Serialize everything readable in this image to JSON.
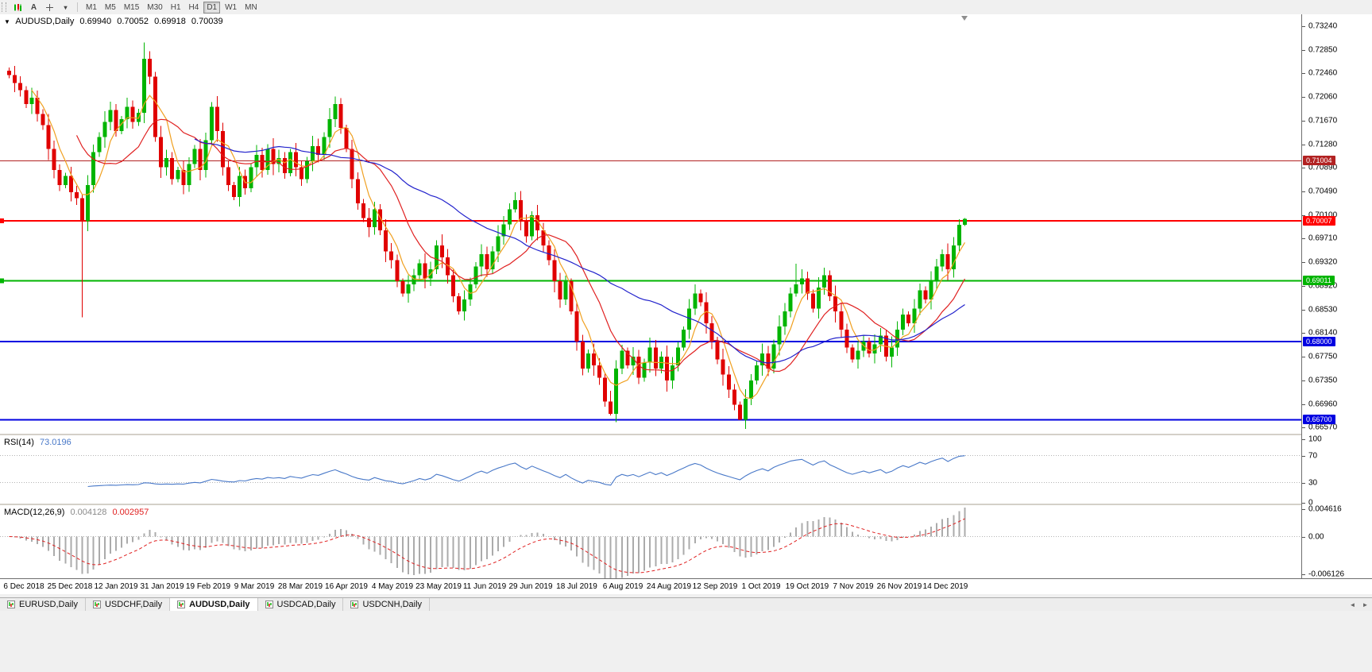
{
  "toolbar": {
    "icons": [
      {
        "name": "candlestick-chart-icon"
      },
      {
        "name": "text-annotation-icon",
        "glyph": "A"
      },
      {
        "name": "crosshair-icon"
      },
      {
        "name": "draw-tools-dropdown-icon",
        "glyph": "▾"
      }
    ],
    "timeframes": [
      "M1",
      "M5",
      "M15",
      "M30",
      "H1",
      "H4",
      "D1",
      "W1",
      "MN"
    ],
    "active_timeframe": "D1"
  },
  "chart": {
    "symbol_header": {
      "dropdown_icon": "▼",
      "symbol": "AUDUSD,Daily",
      "open": "0.69940",
      "high": "0.70052",
      "low": "0.69918",
      "close": "0.70039"
    },
    "colors": {
      "up": "#00B400",
      "down": "#E00000",
      "background": "#FFFFFF"
    },
    "ylim_top": 0.7344,
    "ylim_bottom": 0.6648,
    "price_ticks": [
      "0.73240",
      "0.72850",
      "0.72460",
      "0.72060",
      "0.71670",
      "0.71280",
      "0.70890",
      "0.70490",
      "0.70100",
      "0.69710",
      "0.69320",
      "0.68920",
      "0.68530",
      "0.68140",
      "0.67750",
      "0.67350",
      "0.66960",
      "0.66570"
    ],
    "hlines": [
      {
        "price": 0.71004,
        "label": "0.71004",
        "color": "#B22222",
        "width": 1.4,
        "left_tag": false
      },
      {
        "price": 0.70007,
        "label": "0.70007",
        "color": "#FF0000",
        "width": 2,
        "left_tag": true
      },
      {
        "price": 0.69011,
        "label": "0.69011",
        "color": "#00B400",
        "width": 2,
        "left_tag": true
      },
      {
        "price": 0.68,
        "label": "0.68000",
        "color": "#0000E1",
        "width": 2,
        "left_tag": false
      },
      {
        "price": 0.667,
        "label": "0.66700",
        "color": "#0000E1",
        "width": 2,
        "left_tag": false
      }
    ],
    "moving_averages": [
      {
        "name": "fast-ma",
        "period": 5,
        "color": "#F0A020"
      },
      {
        "name": "medium-ma",
        "period": 13,
        "color": "#E02020"
      },
      {
        "name": "slow-ma",
        "period": 34,
        "color": "#2222CC"
      }
    ],
    "dates": [
      "6 Dec 2018",
      "25 Dec 2018",
      "12 Jan 2019",
      "31 Jan 2019",
      "19 Feb 2019",
      "9 Mar 2019",
      "28 Mar 2019",
      "16 Apr 2019",
      "4 May 2019",
      "23 May 2019",
      "11 Jun 2019",
      "29 Jun 2019",
      "18 Jul 2019",
      "6 Aug 2019",
      "24 Aug 2019",
      "12 Sep 2019",
      "1 Oct 2019",
      "19 Oct 2019",
      "7 Nov 2019",
      "26 Nov 2019",
      "14 Dec 2019"
    ]
  },
  "chart_data": {
    "type": "candlestick",
    "title": "AUDUSD Daily",
    "symbol": "AUDUSD",
    "timeframe": "Daily",
    "x_range": [
      "6 Dec 2018",
      "31 Dec 2019"
    ],
    "ylim": [
      0.6648,
      0.7344
    ],
    "first_open": 0.725,
    "default_wick": 0.0013,
    "closes": [
      0.7243,
      0.723,
      0.7218,
      0.7195,
      0.7205,
      0.7178,
      0.716,
      0.712,
      0.7085,
      0.706,
      0.7075,
      0.7048,
      0.7038,
      0.7,
      0.706,
      0.7115,
      0.714,
      0.7165,
      0.7185,
      0.715,
      0.717,
      0.719,
      0.7165,
      0.718,
      0.727,
      0.724,
      0.714,
      0.709,
      0.7105,
      0.707,
      0.7085,
      0.706,
      0.7095,
      0.712,
      0.7085,
      0.7135,
      0.719,
      0.715,
      0.709,
      0.706,
      0.704,
      0.7075,
      0.7055,
      0.709,
      0.711,
      0.7085,
      0.712,
      0.7095,
      0.7105,
      0.708,
      0.7115,
      0.709,
      0.707,
      0.71,
      0.7125,
      0.711,
      0.714,
      0.717,
      0.7195,
      0.7155,
      0.712,
      0.707,
      0.703,
      0.7005,
      0.699,
      0.702,
      0.6985,
      0.695,
      0.6935,
      0.69,
      0.688,
      0.6895,
      0.691,
      0.693,
      0.6905,
      0.692,
      0.696,
      0.694,
      0.691,
      0.6875,
      0.685,
      0.687,
      0.6895,
      0.6925,
      0.6945,
      0.692,
      0.695,
      0.6975,
      0.6995,
      0.702,
      0.7035,
      0.7,
      0.6975,
      0.701,
      0.6985,
      0.696,
      0.6935,
      0.69,
      0.687,
      0.69,
      0.685,
      0.68,
      0.6755,
      0.678,
      0.676,
      0.674,
      0.67,
      0.668,
      0.6755,
      0.6785,
      0.676,
      0.6775,
      0.674,
      0.6765,
      0.679,
      0.6755,
      0.6775,
      0.6735,
      0.676,
      0.679,
      0.682,
      0.6855,
      0.688,
      0.6865,
      0.683,
      0.68,
      0.677,
      0.6745,
      0.672,
      0.6695,
      0.667,
      0.6705,
      0.6735,
      0.676,
      0.678,
      0.6755,
      0.6795,
      0.6825,
      0.685,
      0.688,
      0.6895,
      0.6905,
      0.688,
      0.6855,
      0.689,
      0.691,
      0.6875,
      0.685,
      0.682,
      0.679,
      0.677,
      0.6785,
      0.68,
      0.678,
      0.6795,
      0.681,
      0.6775,
      0.679,
      0.682,
      0.6845,
      0.683,
      0.6855,
      0.6885,
      0.687,
      0.69,
      0.6925,
      0.6945,
      0.692,
      0.696,
      0.6994,
      0.70039
    ],
    "wick_overrides": {
      "13": {
        "l": 0.684
      },
      "24": {
        "h": 0.7297
      },
      "58": {
        "h": 0.7207
      },
      "90": {
        "h": 0.7048
      },
      "107": {
        "l": 0.6677
      },
      "122": {
        "h": 0.6895
      },
      "130": {
        "l": 0.667
      },
      "140": {
        "h": 0.6929
      },
      "170": {
        "h": 0.70052,
        "l": 0.69918
      }
    },
    "last_candle_ohlc": [
      0.6994,
      0.70052,
      0.69918,
      0.70039
    ]
  },
  "rsi": {
    "label": "RSI(14)",
    "value": "73.0196",
    "period": 14,
    "levels": [
      70,
      30
    ],
    "axis_ticks": [
      "100",
      "70",
      "30",
      "0"
    ],
    "color": "#4878C8"
  },
  "macd": {
    "label": "MACD(12,26,9)",
    "value_main": "0.004128",
    "value_signal": "0.002957",
    "fast": 12,
    "slow": 26,
    "signal": 9,
    "ylim_top": 0.004616,
    "ylim_bottom": -0.006126,
    "axis_ticks": [
      {
        "label": "0.004616",
        "value": 0.004616
      },
      {
        "label": "0.00",
        "value": 0
      },
      {
        "label": "-0.006126",
        "value": -0.006126
      }
    ],
    "hist_color": "#ABABAB",
    "signal_color": "#E02020"
  },
  "tabs": {
    "items": [
      {
        "label": "EURUSD,Daily",
        "active": false
      },
      {
        "label": "USDCHF,Daily",
        "active": false
      },
      {
        "label": "AUDUSD,Daily",
        "active": true
      },
      {
        "label": "USDCAD,Daily",
        "active": false
      },
      {
        "label": "USDCNH,Daily",
        "active": false
      }
    ],
    "scroll_left": "◄",
    "scroll_right": "►"
  }
}
